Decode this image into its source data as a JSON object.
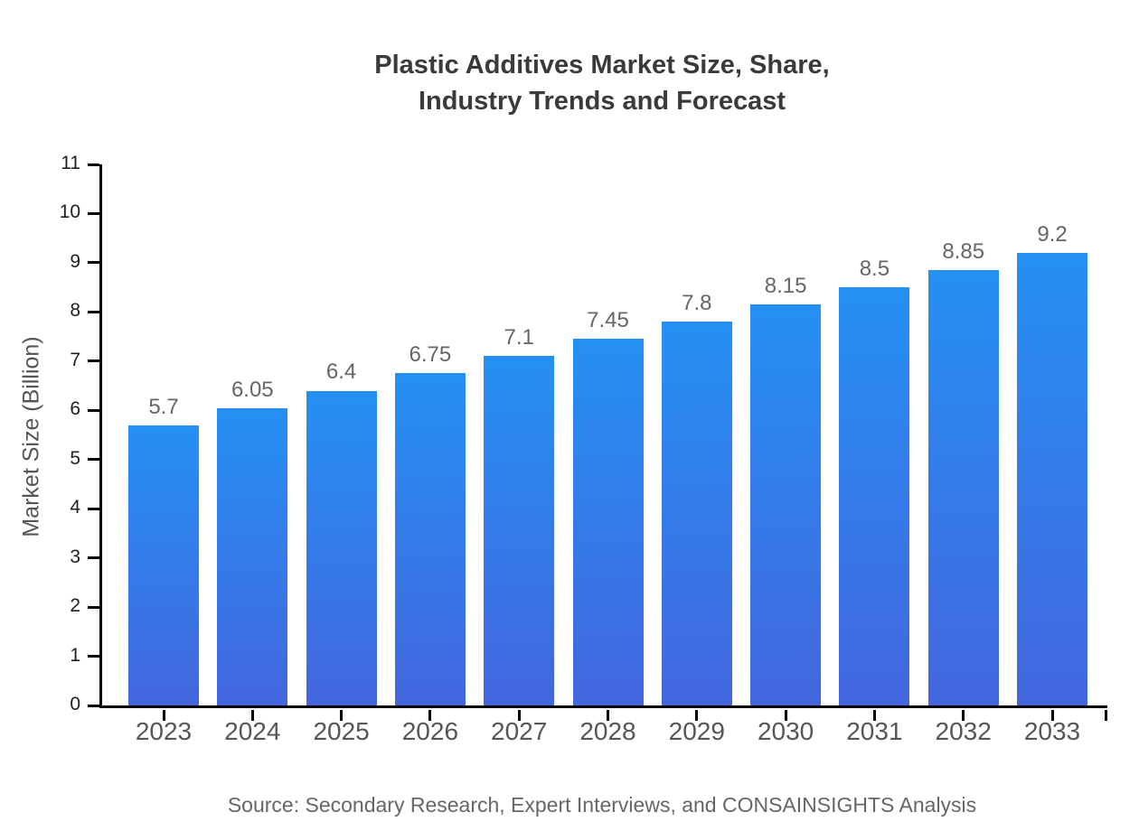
{
  "chart_data": {
    "type": "bar",
    "title_line1": "Plastic Additives Market Size, Share,",
    "title_line2": "Industry Trends and Forecast",
    "ylabel": "Market Size (Billion)",
    "xlabel": "",
    "categories": [
      "2023",
      "2024",
      "2025",
      "2026",
      "2027",
      "2028",
      "2029",
      "2030",
      "2031",
      "2032",
      "2033"
    ],
    "values": [
      5.7,
      6.05,
      6.4,
      6.75,
      7.1,
      7.45,
      7.8,
      8.15,
      8.5,
      8.85,
      9.2
    ],
    "value_labels": [
      "5.7",
      "6.05",
      "6.4",
      "6.75",
      "7.1",
      "7.45",
      "7.8",
      "8.15",
      "8.5",
      "8.85",
      "9.2"
    ],
    "ylim": [
      0,
      11
    ],
    "yticks": [
      0,
      1,
      2,
      3,
      4,
      5,
      6,
      7,
      8,
      9,
      10,
      11
    ],
    "grid": false,
    "legend": null,
    "source": "Source: Secondary Research, Expert Interviews, and CONSAINSIGHTS Analysis",
    "colors": {
      "bar_gradient_top": "#2590F2",
      "bar_gradient_bottom": "#4366DE",
      "axis": "#000000",
      "title_text": "#3a3a3a",
      "tick_text": "#1f1f1f",
      "category_text": "#565656",
      "value_text": "#666666",
      "source_text": "#666666",
      "background": "#ffffff"
    }
  }
}
